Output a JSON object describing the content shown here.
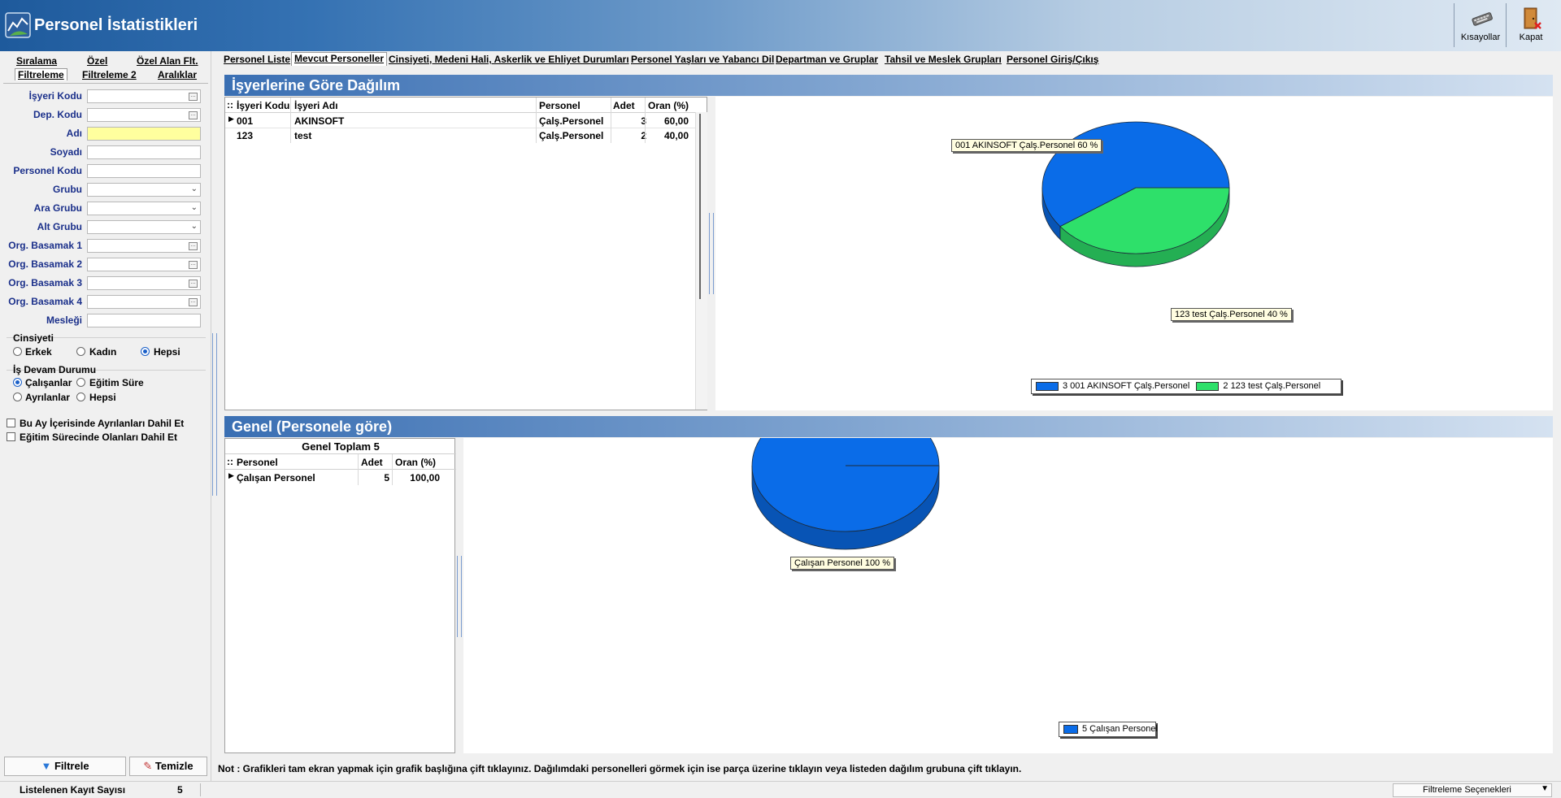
{
  "app": {
    "title": "Personel İstatistikleri",
    "toolbar": {
      "shortcuts_label": "Kısayollar",
      "close_label": "Kapat"
    }
  },
  "sidebar": {
    "tabs": [
      "Sıralama",
      "Özel",
      "Özel Alan Flt.",
      "Filtreleme",
      "Filtreleme 2",
      "Aralıklar"
    ],
    "fields": [
      {
        "label": "İşyeri Kodu",
        "value": "",
        "kind": "ellipsis"
      },
      {
        "label": "Dep. Kodu",
        "value": "",
        "kind": "ellipsis"
      },
      {
        "label": "Adı",
        "value": "",
        "kind": "text-highlight"
      },
      {
        "label": "Soyadı",
        "value": "",
        "kind": "text"
      },
      {
        "label": "Personel Kodu",
        "value": "",
        "kind": "text"
      },
      {
        "label": "Grubu",
        "value": "",
        "kind": "dropdown"
      },
      {
        "label": "Ara Grubu",
        "value": "",
        "kind": "dropdown"
      },
      {
        "label": "Alt Grubu",
        "value": "",
        "kind": "dropdown"
      },
      {
        "label": "Org. Basamak 1",
        "value": "",
        "kind": "ellipsis"
      },
      {
        "label": "Org. Basamak 2",
        "value": "",
        "kind": "ellipsis"
      },
      {
        "label": "Org. Basamak 3",
        "value": "",
        "kind": "ellipsis"
      },
      {
        "label": "Org. Basamak 4",
        "value": "",
        "kind": "ellipsis"
      },
      {
        "label": "Mesleği",
        "value": "",
        "kind": "text"
      }
    ],
    "gender": {
      "title": "Cinsiyeti",
      "options": [
        "Erkek",
        "Kadın",
        "Hepsi"
      ],
      "selected": "Hepsi"
    },
    "work_status": {
      "title": "İş Devam Durumu",
      "options": [
        "Çalışanlar",
        "Eğitim Süre",
        "Ayrılanlar",
        "Hepsi"
      ],
      "selected": "Çalışanlar"
    },
    "checkboxes": [
      "Bu Ay İçerisinde Ayrılanları Dahil Et",
      "Eğitim Sürecinde Olanları Dahil Et"
    ],
    "filter_button": "Filtrele",
    "clear_button": "Temizle"
  },
  "main_tabs": [
    "Personel Liste",
    "Mevcut Personeller",
    "Cinsiyeti, Medeni Hali, Askerlik ve Ehliyet Durumları",
    "Personel Yaşları ve Yabancı Dil",
    "Departman ve Gruplar",
    "Tahsil ve Meslek Grupları",
    "Personel Giriş/Çıkış"
  ],
  "active_tab": "Mevcut Personeller",
  "panel1": {
    "title": "İşyerlerine Göre Dağılım",
    "columns": [
      "İşyeri Kodu",
      "İşyeri Adı",
      "Personel",
      "Adet",
      "Oran (%)"
    ],
    "rows": [
      [
        "001",
        "AKINSOFT",
        "Çalş.Personel",
        "3",
        "60,00"
      ],
      [
        "123",
        "test",
        "Çalş.Personel",
        "2",
        "40,00"
      ]
    ],
    "callouts": [
      "001 AKINSOFT Çalş.Personel 60 %",
      "123 test Çalş.Personel 40 %"
    ],
    "legend": [
      "3 001 AKINSOFT Çalş.Personel",
      "2 123 test Çalş.Personel"
    ]
  },
  "panel2": {
    "title": "Genel (Personele göre)",
    "grid_title": "Genel Toplam 5",
    "columns": [
      "Personel",
      "Adet",
      "Oran (%)"
    ],
    "rows": [
      [
        "Çalışan Personel",
        "5",
        "100,00"
      ]
    ],
    "callouts": [
      "Çalışan Personel 100 %"
    ],
    "legend": [
      "5 Çalışan Personel"
    ]
  },
  "chart_data": [
    {
      "type": "pie",
      "title": "İşyerlerine Göre Dağılım",
      "categories": [
        "001 AKINSOFT Çalş.Personel",
        "123 test Çalş.Personel"
      ],
      "values": [
        3,
        2
      ],
      "percent": [
        60,
        40
      ],
      "colors": [
        "#0a6ce8",
        "#2ee06a"
      ],
      "legend_position": "bottom"
    },
    {
      "type": "pie",
      "title": "Genel (Personele göre)",
      "categories": [
        "Çalışan Personel"
      ],
      "values": [
        5
      ],
      "percent": [
        100
      ],
      "colors": [
        "#0a6ce8"
      ],
      "legend_position": "bottom"
    }
  ],
  "note": "Not : Grafikleri tam ekran yapmak için grafik başlığına çift tıklayınız. Dağılımdaki personelleri görmek için ise parça üzerine tıklayın veya listeden dağılım grubuna çift tıklayın.",
  "status": {
    "record_label": "Listelenen Kayıt Sayısı",
    "record_count": "5",
    "filter_options": "Filtreleme Seçenekleri"
  }
}
